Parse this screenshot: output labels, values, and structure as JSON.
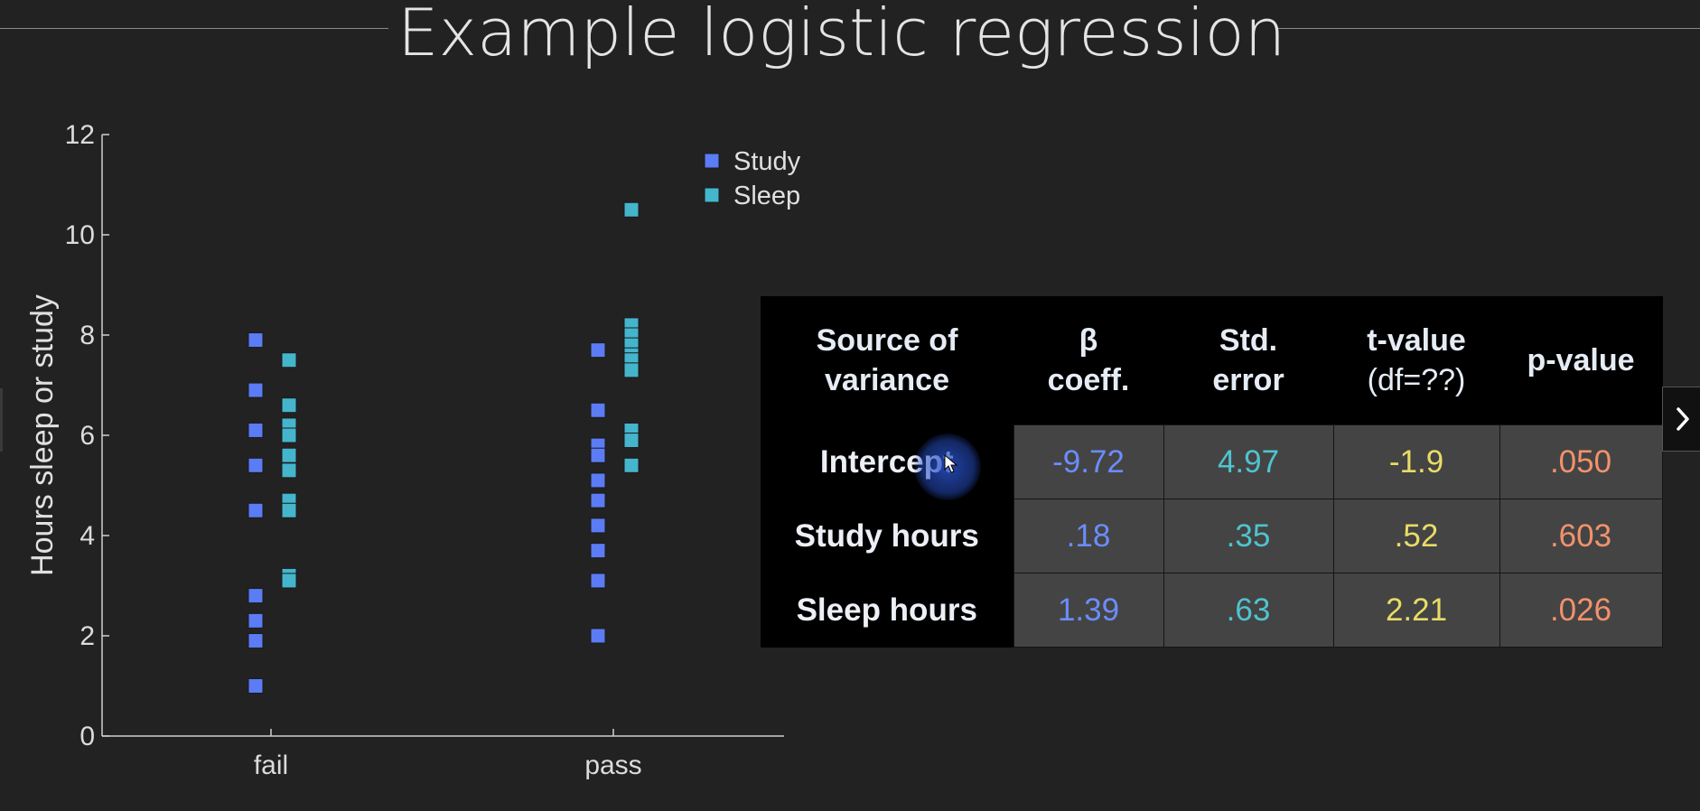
{
  "slide": {
    "title": "Example logistic regression"
  },
  "chart_data": {
    "type": "scatter",
    "title": "",
    "xlabel": "",
    "ylabel": "Hours sleep or study",
    "categories": [
      "fail",
      "pass"
    ],
    "ylim": [
      0,
      12
    ],
    "yticks": [
      0,
      2,
      4,
      6,
      8,
      10,
      12
    ],
    "legend": {
      "placement": "top-center",
      "entries": [
        "Study",
        "Sleep"
      ]
    },
    "grid": false,
    "series": [
      {
        "name": "Study",
        "color": "#5b7cf5",
        "points": [
          {
            "category": "fail",
            "values": [
              7.9,
              6.9,
              6.1,
              5.4,
              4.5,
              2.8,
              2.3,
              1.9,
              1.0
            ]
          },
          {
            "category": "pass",
            "values": [
              7.7,
              6.5,
              5.8,
              5.6,
              5.1,
              4.7,
              4.2,
              3.7,
              3.1,
              2.0
            ]
          }
        ]
      },
      {
        "name": "Sleep",
        "color": "#45b5cc",
        "points": [
          {
            "category": "fail",
            "values": [
              7.5,
              6.6,
              6.2,
              6.0,
              5.6,
              5.3,
              4.7,
              4.5,
              3.2,
              3.1
            ]
          },
          {
            "category": "pass",
            "values": [
              10.5,
              8.2,
              8.0,
              7.8,
              7.6,
              7.5,
              7.3,
              6.1,
              5.9,
              5.4
            ]
          }
        ]
      }
    ]
  },
  "table": {
    "headers": {
      "source": [
        "Source of",
        "variance"
      ],
      "beta": [
        "β",
        "coeff."
      ],
      "se": [
        "Std.",
        "error"
      ],
      "t": [
        "t-value",
        "(df=??)"
      ],
      "p": [
        "p-value"
      ]
    },
    "rows": [
      {
        "source": "Intercept",
        "beta": "-9.72",
        "se": "4.97",
        "t": "-1.9",
        "p": ".050"
      },
      {
        "source": "Study hours",
        "beta": ".18",
        "se": ".35",
        "t": ".52",
        "p": ".603"
      },
      {
        "source": "Sleep hours",
        "beta": "1.39",
        "se": ".63",
        "t": "2.21",
        "p": ".026"
      }
    ]
  },
  "icons": {
    "next": "chevron-right-icon",
    "cursor": "mouse-pointer-icon"
  }
}
